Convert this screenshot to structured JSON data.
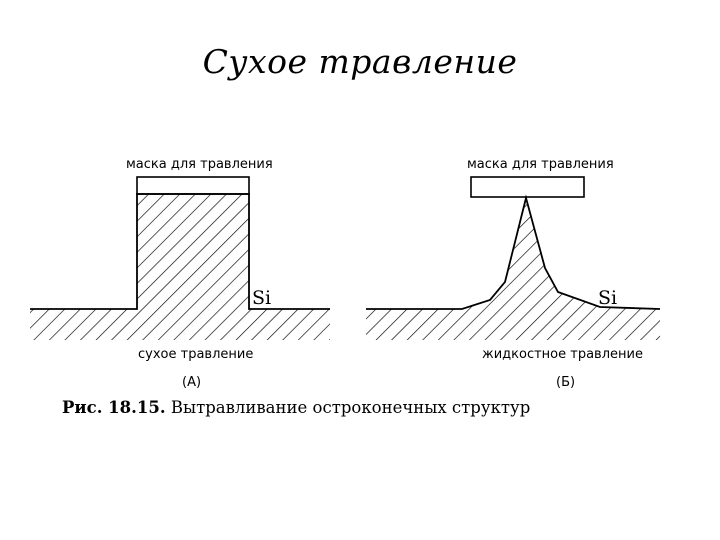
{
  "title": "Сухое травление",
  "panel_a": {
    "mask_label": "маска для травления",
    "material_label": "Si",
    "process_label": "сухое травление",
    "panel_tag": "(А)"
  },
  "panel_b": {
    "mask_label": "маска для травления",
    "material_label": "Si",
    "process_label": "жидкостное травление",
    "panel_tag": "(Б)"
  },
  "caption": {
    "figure_number": "Рис. 18.15.",
    "text": "Вытравливание остроконечных структур"
  }
}
